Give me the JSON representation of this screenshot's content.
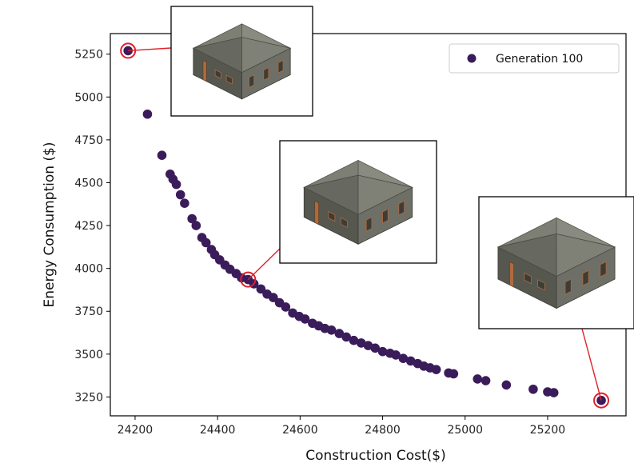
{
  "chart_data": {
    "type": "scatter",
    "xlabel": "Construction Cost($)",
    "ylabel": "Energy Consumption ($)",
    "xlim": [
      24140,
      25390
    ],
    "ylim": [
      3140,
      5370
    ],
    "xticks": [
      24200,
      24400,
      24600,
      24800,
      25000,
      25200
    ],
    "yticks": [
      3250,
      3500,
      3750,
      4000,
      4250,
      4500,
      4750,
      5000,
      5250
    ],
    "legend_position": "top-right",
    "grid": false,
    "series": [
      {
        "name": "Generation 100",
        "color": "#3b1c5a",
        "points": [
          [
            24183,
            5270
          ],
          [
            24230,
            4900
          ],
          [
            24265,
            4660
          ],
          [
            24285,
            4550
          ],
          [
            24292,
            4520
          ],
          [
            24300,
            4490
          ],
          [
            24310,
            4430
          ],
          [
            24320,
            4380
          ],
          [
            24338,
            4290
          ],
          [
            24348,
            4250
          ],
          [
            24362,
            4180
          ],
          [
            24372,
            4150
          ],
          [
            24385,
            4110
          ],
          [
            24393,
            4080
          ],
          [
            24405,
            4050
          ],
          [
            24418,
            4020
          ],
          [
            24430,
            3995
          ],
          [
            24445,
            3970
          ],
          [
            24458,
            3945
          ],
          [
            24474,
            3935
          ],
          [
            24488,
            3910
          ],
          [
            24505,
            3880
          ],
          [
            24520,
            3850
          ],
          [
            24535,
            3830
          ],
          [
            24550,
            3800
          ],
          [
            24565,
            3775
          ],
          [
            24582,
            3740
          ],
          [
            24598,
            3720
          ],
          [
            24612,
            3705
          ],
          [
            24630,
            3680
          ],
          [
            24645,
            3665
          ],
          [
            24660,
            3650
          ],
          [
            24676,
            3640
          ],
          [
            24695,
            3620
          ],
          [
            24712,
            3600
          ],
          [
            24730,
            3580
          ],
          [
            24748,
            3565
          ],
          [
            24765,
            3550
          ],
          [
            24782,
            3535
          ],
          [
            24800,
            3515
          ],
          [
            24818,
            3505
          ],
          [
            24832,
            3495
          ],
          [
            24850,
            3475
          ],
          [
            24868,
            3460
          ],
          [
            24885,
            3445
          ],
          [
            24900,
            3430
          ],
          [
            24915,
            3420
          ],
          [
            24930,
            3410
          ],
          [
            24960,
            3390
          ],
          [
            24972,
            3385
          ],
          [
            25030,
            3355
          ],
          [
            25050,
            3345
          ],
          [
            25100,
            3320
          ],
          [
            25165,
            3295
          ],
          [
            25200,
            3280
          ],
          [
            25215,
            3275
          ],
          [
            25330,
            3230
          ]
        ]
      }
    ],
    "highlighted_points": [
      [
        24183,
        5270
      ],
      [
        24474,
        3935
      ],
      [
        25330,
        3230
      ]
    ],
    "highlight_color": "#e0202a"
  }
}
